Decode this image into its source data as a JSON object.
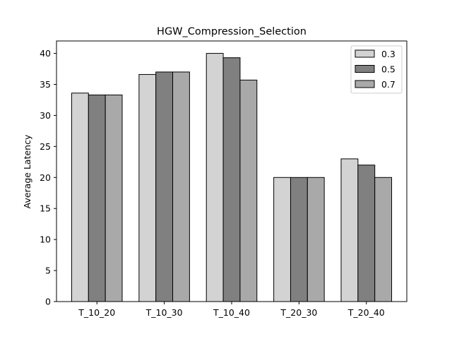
{
  "chart_data": {
    "type": "bar",
    "title": "HGW_Compression_Selection",
    "xlabel": "",
    "ylabel": "Average Latency",
    "categories": [
      "T_10_20",
      "T_10_30",
      "T_10_40",
      "T_20_30",
      "T_20_40"
    ],
    "series": [
      {
        "name": "0.3",
        "color": "#d3d3d3",
        "values": [
          33.6,
          36.6,
          40.0,
          20.0,
          23.0
        ]
      },
      {
        "name": "0.5",
        "color": "#808080",
        "values": [
          33.3,
          37.0,
          39.3,
          20.0,
          22.0
        ]
      },
      {
        "name": "0.7",
        "color": "#a9a9a9",
        "values": [
          33.3,
          37.0,
          35.7,
          20.0,
          20.0
        ]
      }
    ],
    "ylim": [
      0,
      42
    ],
    "yticks": [
      "0",
      "5",
      "10",
      "15",
      "20",
      "25",
      "30",
      "35",
      "40"
    ],
    "grid": false,
    "legend_position": "top-right"
  }
}
